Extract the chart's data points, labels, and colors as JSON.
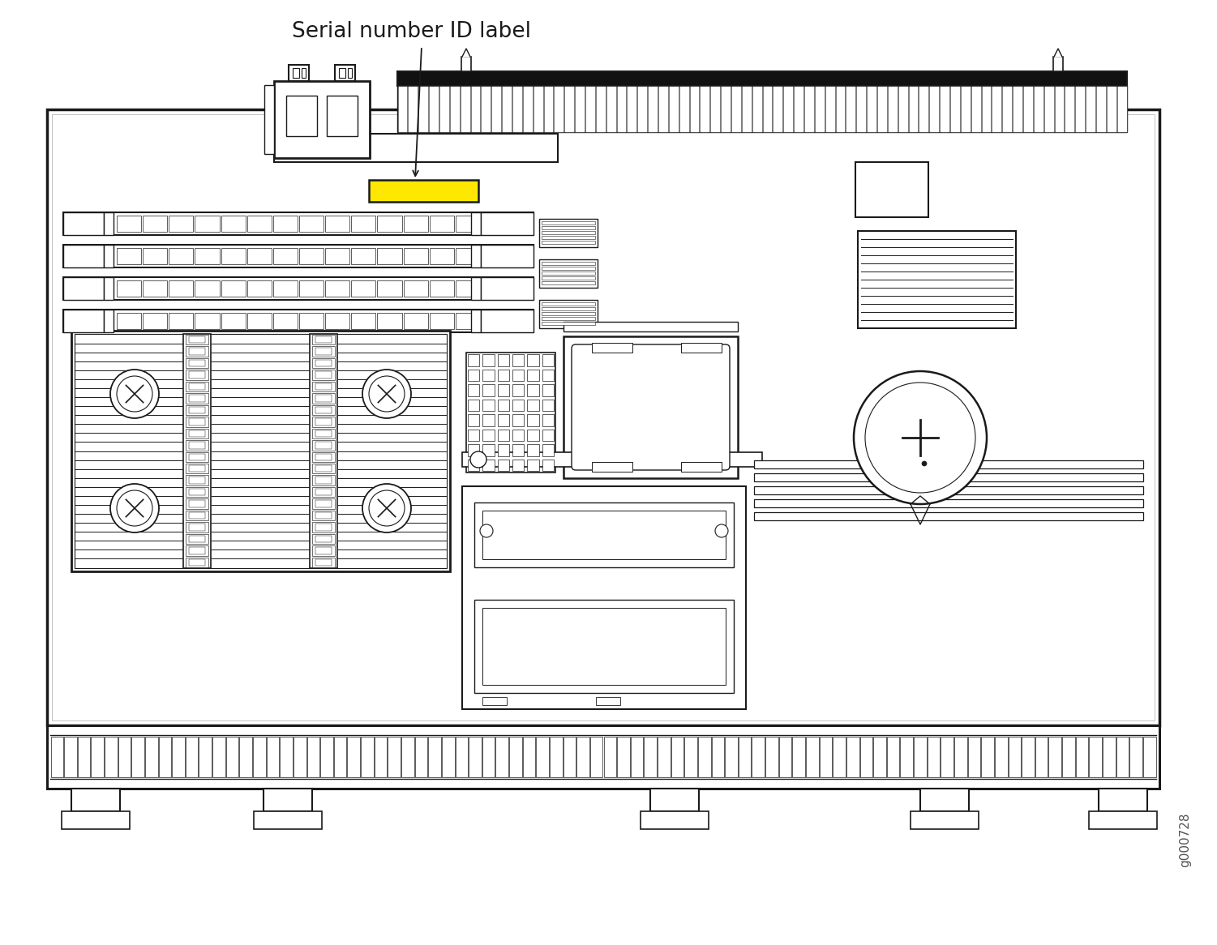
{
  "bg_color": "#ffffff",
  "line_color": "#1a1a1a",
  "yellow_color": "#ffe800",
  "annotation_text": "Serial number ID label",
  "watermark_text": "g000728",
  "fig_width": 15.01,
  "fig_height": 11.66,
  "dpi": 100
}
